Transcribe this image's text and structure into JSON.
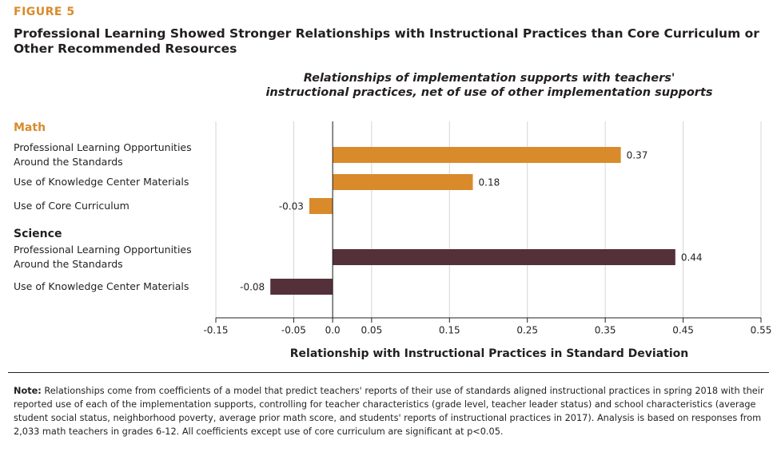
{
  "chart_data": {
    "type": "grouped-hbar",
    "figure_label": "FIGURE 5",
    "title": [
      "Professional Learning Showed Stronger Relationships with Instructional Practices than Core Curriculum or",
      "Other Recommended Resources"
    ],
    "subtitle": [
      "Relationships of implementation supports with teachers'",
      "instructional practices, net of use of other implementation supports"
    ],
    "x_label": "Relationship with Instructional Practices in Standard Deviation",
    "xlim": [
      -0.15,
      0.55
    ],
    "xticks": [
      -0.15,
      -0.05,
      {
        "value": 0,
        "label": "0.0"
      },
      0.05,
      0.15,
      0.25,
      0.35,
      0.45,
      0.55
    ],
    "grid": true,
    "groups": [
      {
        "name": "Math",
        "color": "#d98b2b",
        "categories": [
          "Professional Learning Opportunities Around the Standards",
          "Use of Knowledge Center Materials",
          "Use of Core Curriculum"
        ],
        "values": [
          0.37,
          0.18,
          -0.03
        ]
      },
      {
        "name": "Science",
        "color": "#54303b",
        "categories": [
          "Professional Learning Opportunities Around the Standards",
          "Use of Knowledge Center Materials"
        ],
        "values": [
          0.44,
          -0.08
        ]
      }
    ],
    "note": {
      "label": "Note:",
      "text": "Relationships come from coefficients of a model that predict teachers' reports of their use of standards aligned instructional practices in spring 2018 with their reported use of each of the implementation supports, controlling for teacher characteristics (grade level, teacher leader status) and school characteristics (average student social status, neighborhood poverty, average prior math score, and students' reports of instructional practices in 2017). Analysis is based on responses from 2,033 math teachers in grades 6-12. All coefficients except use of core curriculum are significant at p<0.05."
    }
  }
}
